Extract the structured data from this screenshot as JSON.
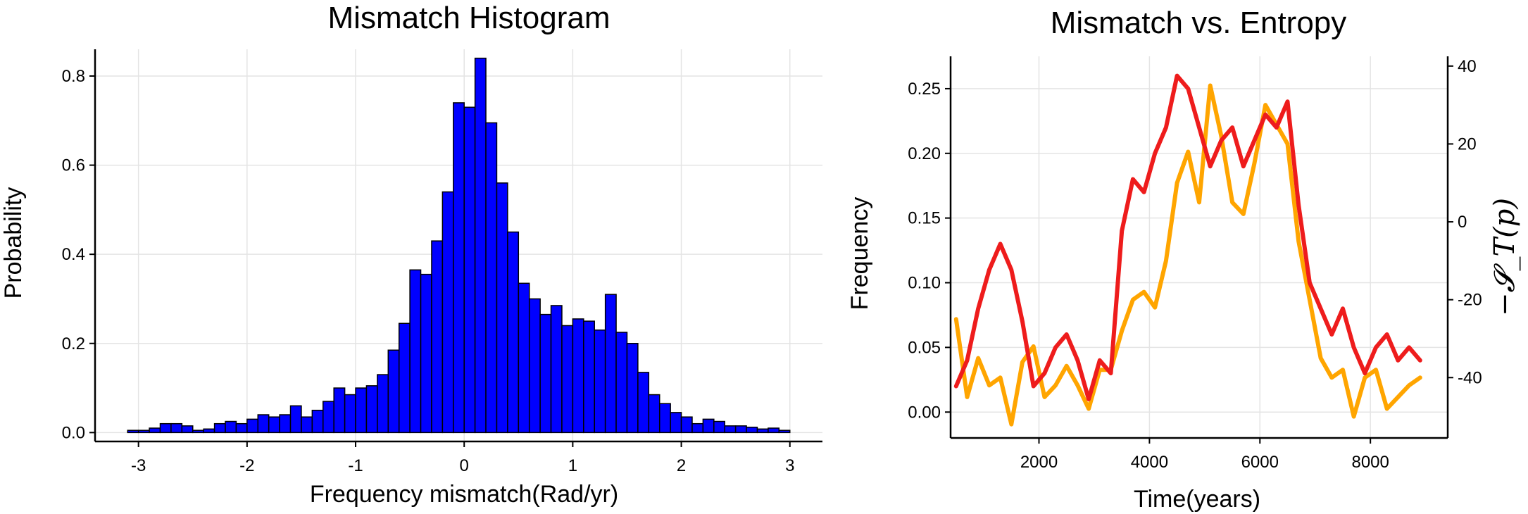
{
  "chart_data": [
    {
      "type": "bar",
      "title": "Mismatch Histogram",
      "xlabel": "Frequency mismatch(Rad/yr)",
      "ylabel": "Probability",
      "xlim": [
        -3.4,
        3.3
      ],
      "ylim": [
        -0.02,
        0.86
      ],
      "xticks": [
        -3,
        -2,
        -1,
        0,
        1,
        2,
        3
      ],
      "yticks": [
        0.0,
        0.2,
        0.4,
        0.6,
        0.8
      ],
      "ytick_labels": [
        "0.0",
        "0.2",
        "0.4",
        "0.6",
        "0.8"
      ],
      "bin_start": -3.1,
      "bin_width": 0.1,
      "values": [
        0.005,
        0.005,
        0.01,
        0.02,
        0.02,
        0.015,
        0.005,
        0.008,
        0.02,
        0.025,
        0.02,
        0.03,
        0.04,
        0.035,
        0.04,
        0.06,
        0.035,
        0.05,
        0.07,
        0.1,
        0.085,
        0.1,
        0.105,
        0.13,
        0.185,
        0.245,
        0.365,
        0.355,
        0.43,
        0.54,
        0.74,
        0.73,
        0.84,
        0.695,
        0.56,
        0.45,
        0.335,
        0.3,
        0.265,
        0.285,
        0.24,
        0.255,
        0.25,
        0.23,
        0.31,
        0.225,
        0.2,
        0.135,
        0.085,
        0.065,
        0.045,
        0.035,
        0.02,
        0.03,
        0.025,
        0.015,
        0.015,
        0.012,
        0.008,
        0.01,
        0.005
      ]
    },
    {
      "type": "line",
      "title": "Mismatch vs. Entropy",
      "xlabel": "Time(years)",
      "ylabel": "Frequency",
      "ylabel_right": "−𝓢_T(p)",
      "xlim": [
        400,
        9400
      ],
      "ylim": [
        -0.02,
        0.275
      ],
      "ylim_right": [
        -55.5,
        42.5
      ],
      "xticks": [
        2000,
        4000,
        6000,
        8000
      ],
      "yticks": [
        0.0,
        0.05,
        0.1,
        0.15,
        0.2,
        0.25
      ],
      "ytick_labels": [
        "0.00",
        "0.05",
        "0.10",
        "0.15",
        "0.20",
        "0.25"
      ],
      "yticks_right": [
        -40,
        -20,
        0,
        20,
        40
      ],
      "colors": {
        "frequency": "#ee1c1c",
        "entropy": "#ffa500"
      },
      "x": [
        500,
        700,
        900,
        1100,
        1300,
        1500,
        1700,
        1900,
        2100,
        2300,
        2500,
        2700,
        2900,
        3100,
        3300,
        3500,
        3700,
        3900,
        4100,
        4300,
        4500,
        4700,
        4900,
        5100,
        5300,
        5500,
        5700,
        5900,
        6100,
        6300,
        6500,
        6700,
        6900,
        7100,
        7300,
        7500,
        7700,
        7900,
        8100,
        8300,
        8500,
        8700,
        8900
      ],
      "series": [
        {
          "values": [
            0.02,
            0.04,
            0.08,
            0.11,
            0.13,
            0.11,
            0.07,
            0.02,
            0.03,
            0.05,
            0.06,
            0.04,
            0.01,
            0.04,
            0.03,
            0.14,
            0.18,
            0.17,
            0.2,
            0.22,
            0.26,
            0.25,
            0.22,
            0.19,
            0.21,
            0.22,
            0.19,
            0.21,
            0.23,
            0.22,
            0.24,
            0.16,
            0.1,
            0.08,
            0.06,
            0.08,
            0.05,
            0.03,
            0.05,
            0.06,
            0.04,
            0.05,
            0.04
          ],
          "axis": "left"
        },
        {
          "values": [
            -25,
            -45,
            -35,
            -42,
            -40,
            -52,
            -36,
            -32,
            -45,
            -42,
            -37,
            -42,
            -48,
            -38,
            -38,
            -28,
            -20,
            -18,
            -22,
            -10,
            10,
            18,
            5,
            35,
            22,
            5,
            2,
            15,
            30,
            25,
            20,
            -5,
            -20,
            -35,
            -40,
            -38,
            -50,
            -40,
            -38,
            -48,
            -45,
            -42,
            -40
          ],
          "axis": "right"
        }
      ]
    }
  ]
}
